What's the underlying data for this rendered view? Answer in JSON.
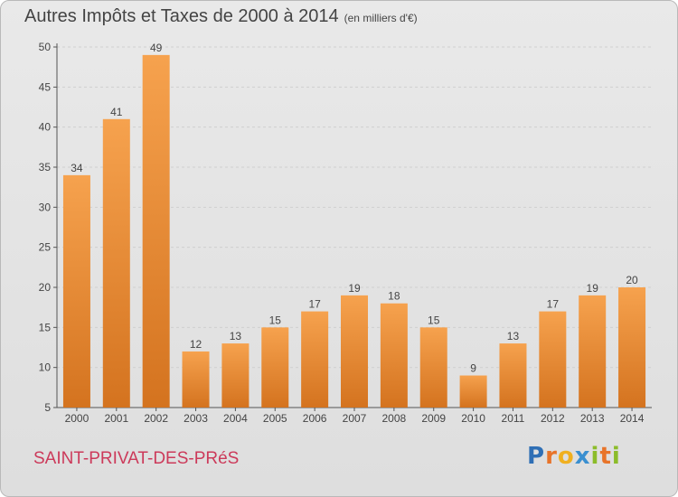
{
  "header": {
    "title": "Autres Impôts et Taxes de 2000 à 2014",
    "unit": "(en milliers d'€)"
  },
  "footer": {
    "commune": "SAINT-PRIVAT-DES-PRéS",
    "logo": {
      "text": "Proxiti",
      "letters": [
        "P",
        "r",
        "o",
        "x",
        "i",
        "t",
        "i"
      ],
      "colors": [
        "#2f6fb5",
        "#e8742a",
        "#f0b020",
        "#3a8fd0",
        "#8cbc2a",
        "#e8742a",
        "#8cbc2a"
      ]
    }
  },
  "colors": {
    "bar_light": "#f6a24e",
    "bar_dark": "#d4731f",
    "grid": "#cfcfcf",
    "axis": "#555555",
    "label": "#444444"
  },
  "chart_data": {
    "type": "bar",
    "title": "Autres Impôts et Taxes de 2000 à 2014",
    "subtitle": "(en milliers d'€)",
    "categories": [
      "2000",
      "2001",
      "2002",
      "2003",
      "2004",
      "2005",
      "2006",
      "2007",
      "2008",
      "2009",
      "2010",
      "2011",
      "2012",
      "2013",
      "2014"
    ],
    "values": [
      34,
      41,
      49,
      12,
      13,
      15,
      17,
      19,
      18,
      15,
      9,
      13,
      17,
      19,
      20
    ],
    "yticks": [
      5,
      10,
      15,
      20,
      25,
      30,
      35,
      40,
      45,
      50
    ],
    "ylim": [
      5,
      50
    ],
    "grid": true,
    "data_labels": true
  }
}
